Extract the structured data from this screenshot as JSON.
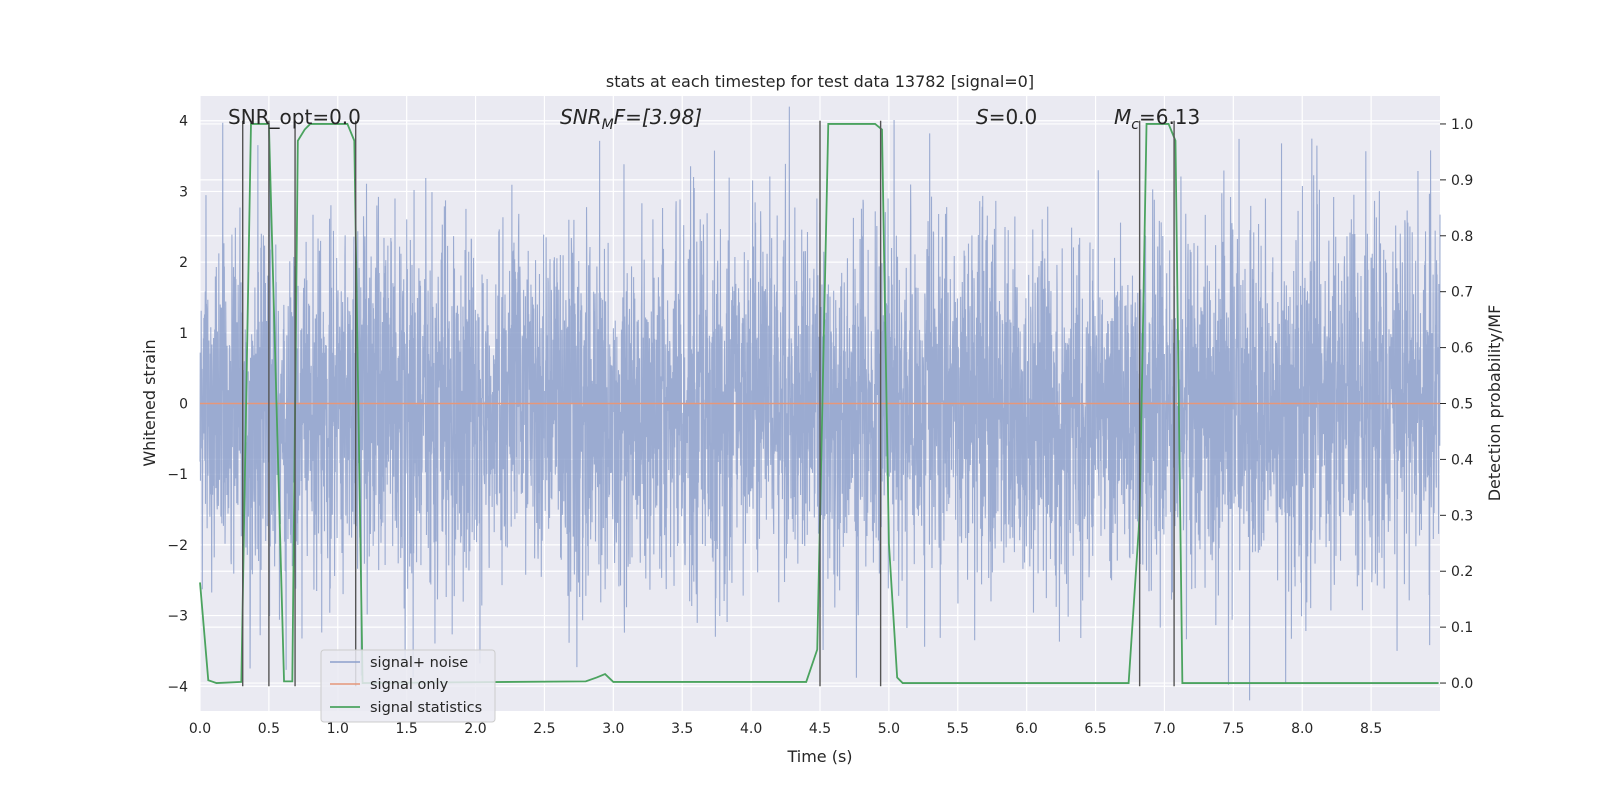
{
  "chart_data": {
    "type": "line",
    "title": "stats at each timestep for test data 13782 [signal=0]",
    "xlabel": "Time (s)",
    "ylabel_left": "Whitened strain",
    "ylabel_right": "Detection probability/MF",
    "xlim": [
      0,
      9.0
    ],
    "ylim_left": [
      -4.35,
      4.35
    ],
    "ylim_right": [
      -0.05,
      1.05
    ],
    "x_ticks": [
      0.0,
      0.5,
      1.0,
      1.5,
      2.0,
      2.5,
      3.0,
      3.5,
      4.0,
      4.5,
      5.0,
      5.5,
      6.0,
      6.5,
      7.0,
      7.5,
      8.0,
      8.5
    ],
    "x_tick_labels": [
      "0.0",
      "0.5",
      "1.0",
      "1.5",
      "2.0",
      "2.5",
      "3.0",
      "3.5",
      "4.0",
      "4.5",
      "5.0",
      "5.5",
      "6.0",
      "6.5",
      "7.0",
      "7.5",
      "8.0",
      "8.5"
    ],
    "y_left_ticks": [
      -4,
      -3,
      -2,
      -1,
      0,
      1,
      2,
      3,
      4
    ],
    "y_left_tick_labels": [
      "−4",
      "−3",
      "−2",
      "−1",
      "0",
      "1",
      "2",
      "3",
      "4"
    ],
    "y_right_ticks": [
      0.0,
      0.1,
      0.2,
      0.3,
      0.4,
      0.5,
      0.6,
      0.7,
      0.8,
      0.9,
      1.0
    ],
    "y_right_tick_labels": [
      "0.0",
      "0.1",
      "0.2",
      "0.3",
      "0.4",
      "0.5",
      "0.6",
      "0.7",
      "0.8",
      "0.9",
      "1.0"
    ],
    "grid": true,
    "legend_position": "lower-left",
    "annotations": {
      "snr_opt": "SNR_opt=0.0",
      "snr_mf_base": "SNR",
      "snr_mf_sub": "M",
      "snr_mf_rest": "F=[3.98]",
      "s_var": "S",
      "s_rest": "=0.0",
      "mc_var": "M",
      "mc_sub": "c",
      "mc_rest": "=6.13"
    },
    "series": [
      {
        "name": "signal+ noise",
        "color": "#8da0cb",
        "style": "noise",
        "amplitude_sd": 1.25,
        "x_range": [
          0,
          9.0
        ]
      },
      {
        "name": "signal only",
        "color": "#e5977a",
        "x": [
          0,
          9.0
        ],
        "y": [
          0,
          0
        ]
      },
      {
        "name": "signal statistics",
        "color": "#4ba35f",
        "axis": "right",
        "x": [
          0.0,
          0.06,
          0.12,
          0.3,
          0.37,
          0.5,
          0.61,
          0.67,
          0.71,
          0.76,
          0.8,
          1.07,
          1.12,
          1.18,
          2.8,
          2.88,
          2.94,
          3.0,
          4.4,
          4.48,
          4.56,
          4.9,
          4.95,
          5.0,
          5.06,
          5.1,
          6.74,
          6.82,
          6.87,
          7.03,
          7.08,
          7.13,
          8.99
        ],
        "y": [
          0.18,
          0.005,
          0.0,
          0.002,
          1.0,
          1.0,
          0.003,
          0.003,
          0.97,
          0.99,
          1.0,
          1.0,
          0.97,
          0.0,
          0.003,
          0.01,
          0.016,
          0.002,
          0.002,
          0.06,
          1.0,
          1.0,
          0.99,
          0.25,
          0.01,
          0.0,
          0.0,
          0.3,
          1.0,
          1.0,
          0.97,
          0.0,
          0.0
        ]
      }
    ],
    "vertical_markers_x": [
      0.31,
      0.5,
      0.69,
      1.13,
      4.5,
      4.94,
      6.82,
      7.07
    ]
  }
}
